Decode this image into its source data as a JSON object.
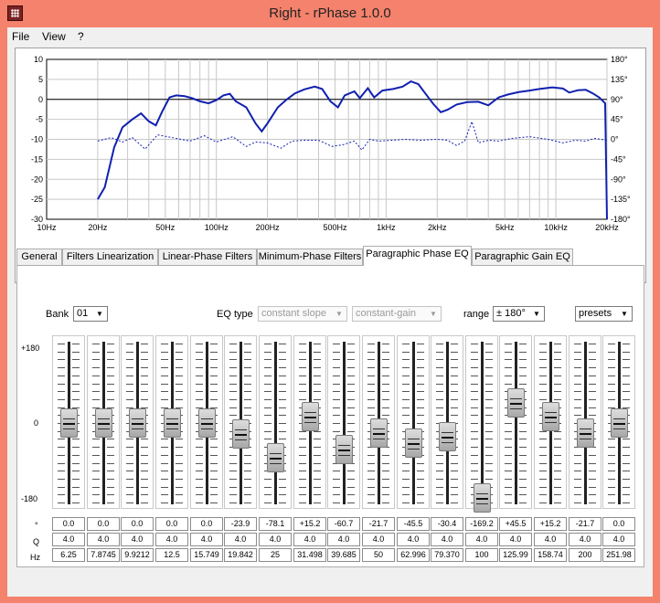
{
  "window": {
    "title": "Right  -  rPhase 1.0.0"
  },
  "menu": [
    "File",
    "View",
    "?"
  ],
  "graph": {
    "y_left": [
      "10",
      "5",
      "0",
      "-5",
      "-10",
      "-15",
      "-20",
      "-25",
      "-30"
    ],
    "y_right": [
      "180°",
      "135°",
      "90°",
      "45°",
      "0°",
      "-45°",
      "-90°",
      "-135°",
      "-180°"
    ],
    "x_labels": [
      "10Hz",
      "20Hz",
      "50Hz",
      "100Hz",
      "200Hz",
      "500Hz",
      "1kHz",
      "2kHz",
      "5kHz",
      "10kHz",
      "20kHz"
    ],
    "colors": {
      "magnitude": "#1020b0",
      "phase": "#1020b0",
      "grid": "#c8c8c8"
    }
  },
  "tabs": [
    "General",
    "Filters Linearization",
    "Linear-Phase Filters",
    "Minimum-Phase Filters",
    "Paragraphic Phase EQ",
    "Paragraphic Gain EQ"
  ],
  "active_tab": "Paragraphic Phase EQ",
  "controls": {
    "bank_label": "Bank",
    "bank_value": "01",
    "eqtype_label": "EQ type",
    "eqtype_value": "constant slope",
    "gain_mode_value": "constant-gain",
    "range_label": "range",
    "range_value": "± 180°",
    "presets_value": "presets"
  },
  "slider_scale": [
    "+180",
    "0",
    "-180"
  ],
  "row_labels": {
    "degrees": "°",
    "q": "Q",
    "hz": "Hz"
  },
  "bands": [
    {
      "deg": "0.0",
      "q": "4.0",
      "hz": "6.25"
    },
    {
      "deg": "0.0",
      "q": "4.0",
      "hz": "7.8745"
    },
    {
      "deg": "0.0",
      "q": "4.0",
      "hz": "9.9212"
    },
    {
      "deg": "0.0",
      "q": "4.0",
      "hz": "12.5"
    },
    {
      "deg": "0.0",
      "q": "4.0",
      "hz": "15.749"
    },
    {
      "deg": "-23.9",
      "q": "4.0",
      "hz": "19.842"
    },
    {
      "deg": "-78.1",
      "q": "4.0",
      "hz": "25"
    },
    {
      "deg": "+15.2",
      "q": "4.0",
      "hz": "31.498"
    },
    {
      "deg": "-60.7",
      "q": "4.0",
      "hz": "39.685"
    },
    {
      "deg": "-21.7",
      "q": "4.0",
      "hz": "50"
    },
    {
      "deg": "-45.5",
      "q": "4.0",
      "hz": "62.996"
    },
    {
      "deg": "-30.4",
      "q": "4.0",
      "hz": "79.370"
    },
    {
      "deg": "-169.2",
      "q": "4.0",
      "hz": "100"
    },
    {
      "deg": "+45.5",
      "q": "4.0",
      "hz": "125.99"
    },
    {
      "deg": "+15.2",
      "q": "4.0",
      "hz": "158.74"
    },
    {
      "deg": "-21.7",
      "q": "4.0",
      "hz": "200"
    },
    {
      "deg": "0.0",
      "q": "4.0",
      "hz": "251.98"
    }
  ]
}
